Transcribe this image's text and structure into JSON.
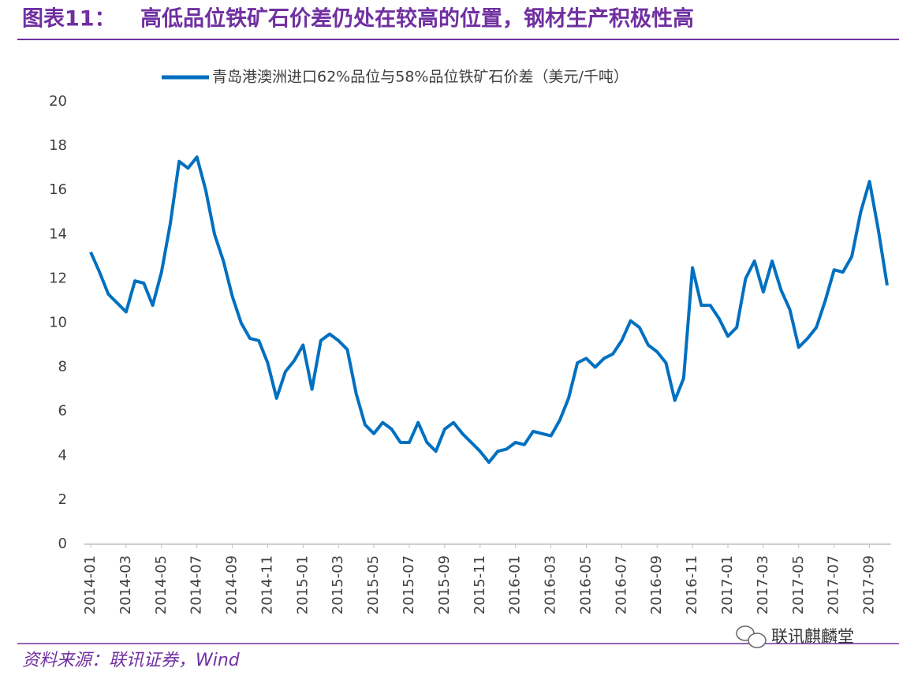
{
  "chart_data": {
    "type": "line",
    "figure_label": "图表11：",
    "title": "高低品位铁矿石价差仍处在较高的位置，钢材生产积极性高",
    "source": "资料来源：联讯证券，Wind",
    "watermark": "联讯麒麟堂",
    "categories": [
      "2014-01",
      null,
      null,
      null,
      "2014-03",
      null,
      null,
      null,
      "2014-05",
      null,
      null,
      null,
      "2014-07",
      null,
      null,
      null,
      "2014-09",
      null,
      null,
      null,
      "2014-11",
      null,
      null,
      null,
      "2015-01",
      null,
      null,
      null,
      "2015-03",
      null,
      null,
      null,
      "2015-05",
      null,
      null,
      null,
      "2015-07",
      null,
      null,
      null,
      "2015-09",
      null,
      null,
      null,
      "2015-11",
      null,
      null,
      null,
      "2016-01",
      null,
      null,
      null,
      "2016-03",
      null,
      null,
      null,
      "2016-05",
      null,
      null,
      null,
      "2016-07",
      null,
      null,
      null,
      "2016-09",
      null,
      null,
      null,
      "2016-11",
      null,
      null,
      null,
      "2017-01",
      null,
      null,
      null,
      "2017-03",
      null,
      null,
      null,
      "2017-05",
      null,
      null,
      null,
      "2017-07",
      null,
      null,
      null,
      "2017-09",
      null,
      null
    ],
    "series": [
      {
        "name": "青岛港澳洲进口62%品位与58%品位铁矿石价差（美元/千吨）",
        "color": "#0070c0",
        "values": [
          13.2,
          12.3,
          11.3,
          10.9,
          10.5,
          11.9,
          11.8,
          10.8,
          12.3,
          14.5,
          17.3,
          17.0,
          17.5,
          16.0,
          14.0,
          12.8,
          11.2,
          10.0,
          9.3,
          9.2,
          8.2,
          6.6,
          7.8,
          8.3,
          9.0,
          7.0,
          9.2,
          9.5,
          9.2,
          8.8,
          6.8,
          5.4,
          5.0,
          5.5,
          5.2,
          4.6,
          4.6,
          5.5,
          4.6,
          4.2,
          5.2,
          5.5,
          5.0,
          4.6,
          4.2,
          3.7,
          4.2,
          4.3,
          4.6,
          4.5,
          5.1,
          5.0,
          4.9,
          5.6,
          6.6,
          8.2,
          8.4,
          8.0,
          8.4,
          8.6,
          9.2,
          10.1,
          9.8,
          9.0,
          8.7,
          8.2,
          6.5,
          7.5,
          12.5,
          10.8,
          10.8,
          10.2,
          9.4,
          9.8,
          12.0,
          12.8,
          11.4,
          12.8,
          11.5,
          10.6,
          8.9,
          9.3,
          9.8,
          11.0,
          12.4,
          12.3,
          13.0,
          15.0,
          16.4,
          14.2,
          11.7
        ]
      }
    ],
    "ylim": [
      0,
      20
    ],
    "yticks": [
      0,
      2,
      4,
      6,
      8,
      10,
      12,
      14,
      16,
      18,
      20
    ],
    "grid": false,
    "legend": "top"
  }
}
